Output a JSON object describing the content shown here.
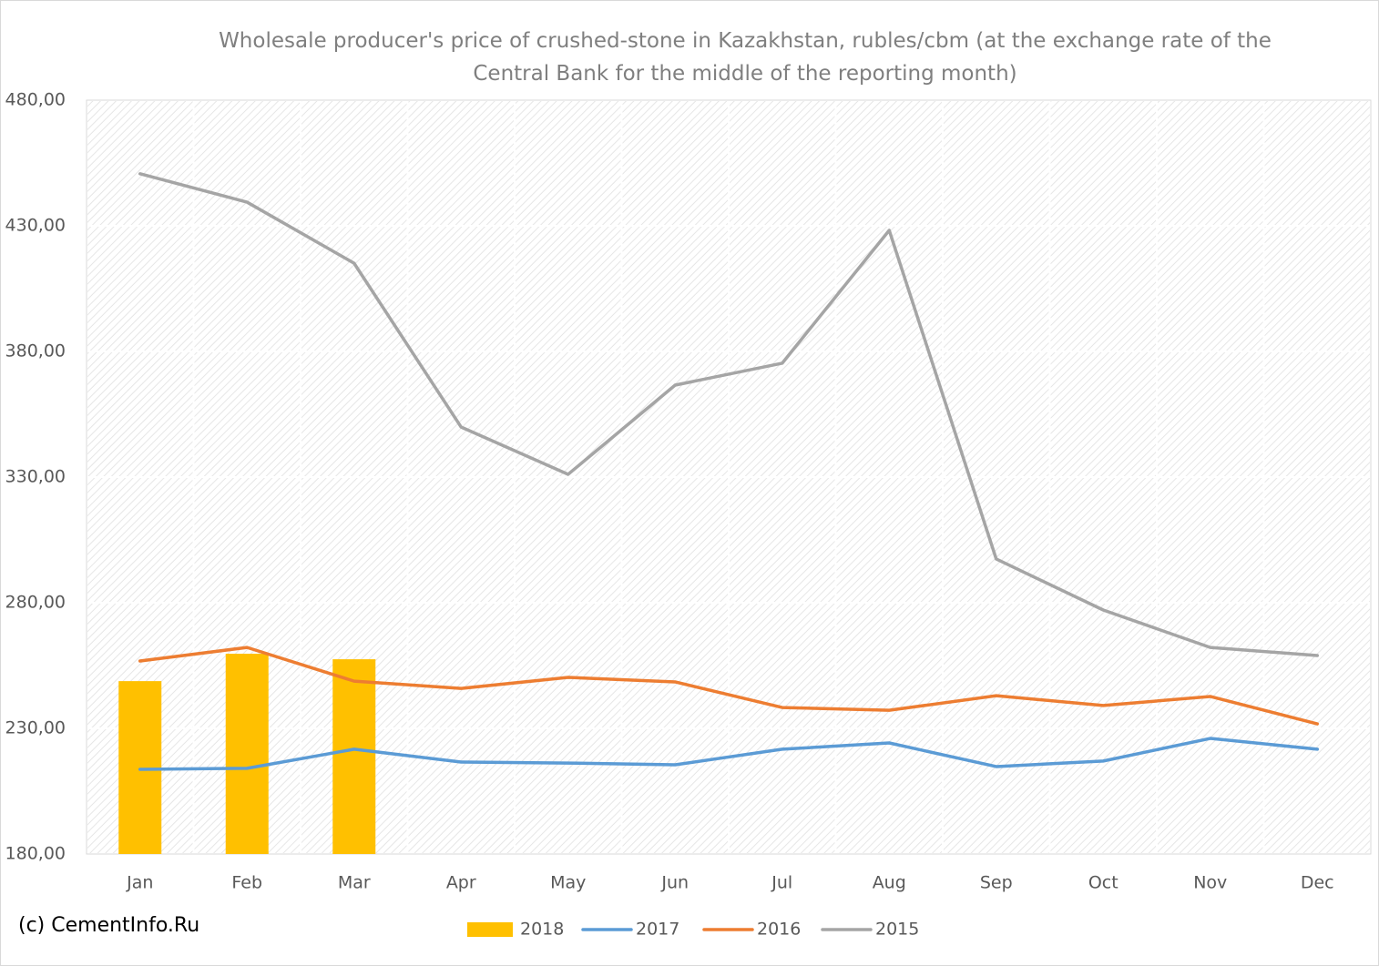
{
  "chart_data": {
    "type": "combo",
    "title": "Wholesale producer's price of crushed-stone in Kazakhstan, rubles/cbm (at the exchange rate of the Central Bank for the middle of the reporting month)",
    "credit": "(c) CementInfo.Ru",
    "categories": [
      "Jan",
      "Feb",
      "Mar",
      "Apr",
      "May",
      "Jun",
      "Jul",
      "Aug",
      "Sep",
      "Oct",
      "Nov",
      "Dec"
    ],
    "series": [
      {
        "name": "2018",
        "type": "bar",
        "color": "#ffc000",
        "values": [
          248.8,
          259.7,
          257.5,
          null,
          null,
          null,
          null,
          null,
          null,
          null,
          null,
          null
        ]
      },
      {
        "name": "2017",
        "type": "line",
        "color": "#5b9bd5",
        "values": [
          213.7,
          214.1,
          221.7,
          216.6,
          216.2,
          215.5,
          221.7,
          224.2,
          214.8,
          217.0,
          226.0,
          221.7
        ]
      },
      {
        "name": "2016",
        "type": "line",
        "color": "#ed7d31",
        "values": [
          256.8,
          262.2,
          248.8,
          245.9,
          250.3,
          248.5,
          238.3,
          237.2,
          243.0,
          239.1,
          242.7,
          231.8
        ]
      },
      {
        "name": "2015",
        "type": "line",
        "color": "#a5a5a5",
        "values": [
          450.7,
          439.4,
          415.1,
          349.9,
          331.1,
          366.6,
          375.3,
          428.2,
          297.4,
          277.1,
          262.2,
          259.0
        ]
      }
    ],
    "ylim": [
      180,
      480
    ],
    "yticks": [
      {
        "value": 180,
        "label": "180,00"
      },
      {
        "value": 230,
        "label": "230,00"
      },
      {
        "value": 280,
        "label": "280,00"
      },
      {
        "value": 330,
        "label": "330,00"
      },
      {
        "value": 380,
        "label": "380,00"
      },
      {
        "value": 430,
        "label": "430,00"
      },
      {
        "value": 480,
        "label": "480,00"
      }
    ],
    "grid": true,
    "legend": "bottom"
  }
}
